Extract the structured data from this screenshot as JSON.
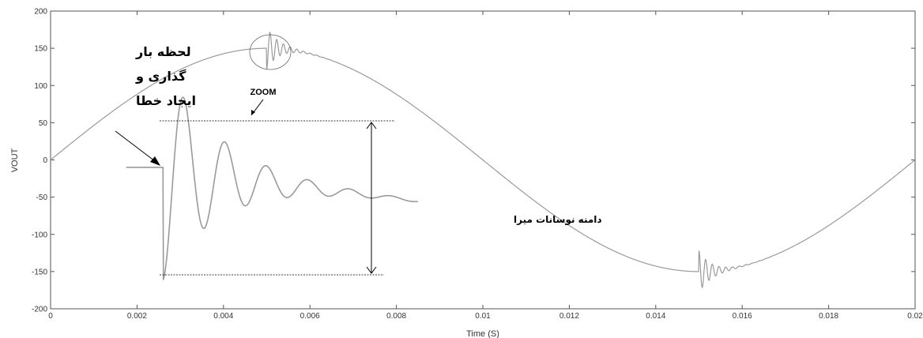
{
  "chart_data": {
    "type": "line",
    "title": "",
    "xlabel": "Time (S)",
    "ylabel": "VOUT",
    "xlim": [
      0,
      0.02
    ],
    "ylim": [
      -200,
      200
    ],
    "x_ticks": [
      "0",
      "0.002",
      "0.004",
      "0.006",
      "0.008",
      "0.01",
      "0.012",
      "0.014",
      "0.016",
      "0.018",
      "0.02"
    ],
    "y_ticks": [
      "200",
      "150",
      "100",
      "50",
      "0",
      "-50",
      "-100",
      "-150",
      "-200"
    ],
    "grid": false,
    "line_color": "#9a9a9a",
    "series": [
      {
        "kind": "sine_with_transients",
        "amplitude": 150,
        "frequency_hz": 50,
        "transients": [
          {
            "t": 0.005,
            "drop": -28,
            "decay_s": 0.00028,
            "osc_period_s": 0.000155
          },
          {
            "t": 0.015,
            "drop": 28,
            "decay_s": 0.00028,
            "osc_period_s": 0.000155
          }
        ],
        "x_range": [
          0,
          0.02
        ]
      }
    ],
    "zoom_inset": {
      "description_values": {
        "x_range": [
          0.0018,
          0.0085
        ],
        "pre_level": -10,
        "drop_to": -157,
        "peaks": [
          40,
          22,
          7,
          -5,
          -14,
          -22,
          -27
        ],
        "end_level": -50
      }
    },
    "annotations": {
      "fault_lines": [
        "لحظه بار",
        "گذاری و",
        "ایجاد خطا"
      ],
      "zoom": "ZOOM",
      "amplitude": "دامنه نوسانات میرا"
    }
  }
}
